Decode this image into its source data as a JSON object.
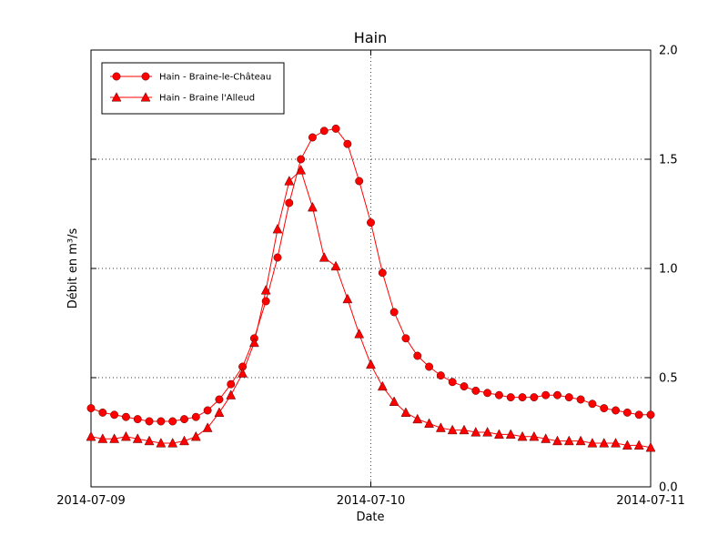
{
  "chart_data": {
    "type": "line",
    "title": "Hain",
    "xlabel": "Date",
    "ylabel": "Débit en m³/s",
    "grid": "dotted",
    "legend_position": "upper-left",
    "x_axis": {
      "range_hours": [
        0,
        48
      ],
      "ticks": [
        {
          "label": "2014-07-09",
          "hour": 0
        },
        {
          "label": "2014-07-10",
          "hour": 24
        },
        {
          "label": "2014-07-11",
          "hour": 48
        }
      ]
    },
    "y_axis": {
      "range": [
        0.0,
        2.0
      ],
      "ticks": [
        {
          "label": "0.0",
          "value": 0.0
        },
        {
          "label": "0.5",
          "value": 0.5
        },
        {
          "label": "1.0",
          "value": 1.0
        },
        {
          "label": "1.5",
          "value": 1.5
        },
        {
          "label": "2.0",
          "value": 2.0
        }
      ]
    },
    "series": [
      {
        "name": "Hain - Braine-le-Château",
        "marker": "circle",
        "color": "#ff0000",
        "x_start_hour": 0,
        "x_step_hours": 1,
        "values": [
          0.36,
          0.34,
          0.33,
          0.32,
          0.31,
          0.3,
          0.3,
          0.3,
          0.31,
          0.32,
          0.35,
          0.4,
          0.47,
          0.55,
          0.68,
          0.85,
          1.05,
          1.3,
          1.5,
          1.6,
          1.63,
          1.64,
          1.57,
          1.4,
          1.21,
          0.98,
          0.8,
          0.68,
          0.6,
          0.55,
          0.51,
          0.48,
          0.46,
          0.44,
          0.43,
          0.42,
          0.41,
          0.41,
          0.41,
          0.42,
          0.42,
          0.41,
          0.4,
          0.38,
          0.36,
          0.35,
          0.34,
          0.33,
          0.33
        ]
      },
      {
        "name": "Hain - Braine l'Alleud",
        "marker": "triangle",
        "color": "#ff0000",
        "x_start_hour": 0,
        "x_step_hours": 1,
        "values": [
          0.23,
          0.22,
          0.22,
          0.23,
          0.22,
          0.21,
          0.2,
          0.2,
          0.21,
          0.23,
          0.27,
          0.34,
          0.42,
          0.52,
          0.66,
          0.9,
          1.18,
          1.4,
          1.45,
          1.28,
          1.05,
          1.01,
          0.86,
          0.7,
          0.56,
          0.46,
          0.39,
          0.34,
          0.31,
          0.29,
          0.27,
          0.26,
          0.26,
          0.25,
          0.25,
          0.24,
          0.24,
          0.23,
          0.23,
          0.22,
          0.21,
          0.21,
          0.21,
          0.2,
          0.2,
          0.2,
          0.19,
          0.19,
          0.18
        ]
      }
    ]
  }
}
